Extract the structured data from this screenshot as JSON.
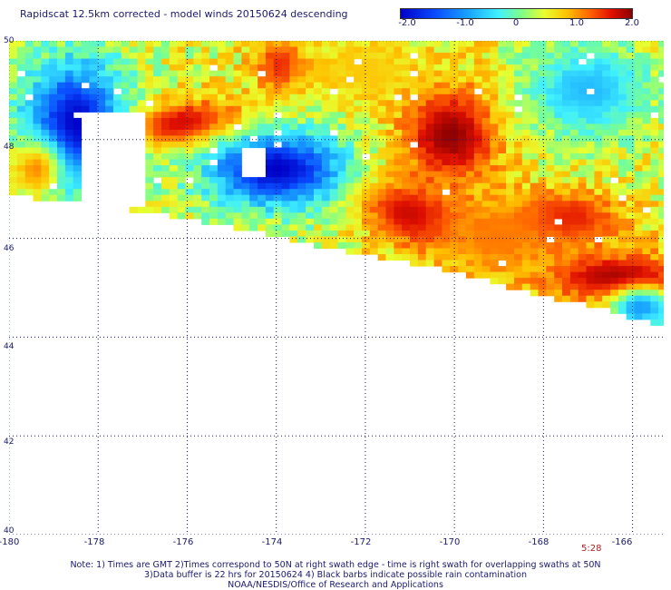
{
  "title": "Rapidscat 12.5km corrected - model winds 20150624 descending",
  "colorbar": {
    "ticks": [
      "-2.0",
      "-1.0",
      "0",
      "1.0",
      "2.0"
    ],
    "range": [
      -2.0,
      2.0
    ],
    "colors": [
      "#0000c8",
      "#0a4cff",
      "#1aa8ff",
      "#3ff0ff",
      "#7dff8a",
      "#e8ff30",
      "#ffc000",
      "#ff6000",
      "#e01000",
      "#8b0000"
    ]
  },
  "axes": {
    "x_ticks": [
      "-180",
      "-178",
      "-176",
      "-174",
      "-172",
      "-170",
      "-168",
      "-166"
    ],
    "y_ticks": [
      "50",
      "48",
      "46",
      "44",
      "42",
      "40"
    ],
    "lon_range": [
      -180,
      -165.3
    ],
    "lat_range": [
      40,
      50
    ],
    "grid": "dotted",
    "grid_color": "#2b9e2b"
  },
  "time_label": "5:28",
  "notes": [
    "Note: 1) Times are GMT 2)Times correspond to 50N at right swath edge - time is right swath for overlapping swaths at 50N",
    "3)Data buffer is 22 hrs for 20150624 4) Black barbs indicate possible rain contamination",
    "NOAA/NESDIS/Office of Research and Applications"
  ],
  "chart_data": {
    "type": "heatmap",
    "title": "Rapidscat 12.5km corrected - model winds 20150624 descending",
    "xlabel": "",
    "ylabel": "",
    "xlim": [
      -180,
      -165.3
    ],
    "ylim": [
      40,
      50
    ],
    "value_range": [
      -2.0,
      2.0
    ],
    "swath_south_edge": [
      [
        -180,
        46.9
      ],
      [
        -178.4,
        46.8
      ],
      [
        -177.0,
        46.6
      ],
      [
        -175.0,
        46.3
      ],
      [
        -172.5,
        45.8
      ],
      [
        -170.0,
        45.4
      ],
      [
        -168.5,
        45.0
      ],
      [
        -167.0,
        44.7
      ],
      [
        -165.3,
        44.3
      ]
    ],
    "no_data_regions": [
      {
        "lon": [
          -178.4,
          -177.0
        ],
        "lat": [
          46.7,
          48.6
        ]
      },
      {
        "lon": [
          -174.7,
          -174.2
        ],
        "lat": [
          47.3,
          47.9
        ]
      }
    ],
    "features": [
      {
        "lon": -176.2,
        "lat": 48.3,
        "value": 2.0,
        "spread_lon": 1.1,
        "spread_lat": 0.35,
        "tilt": -0.55
      },
      {
        "lon": -170.1,
        "lat": 48.1,
        "value": 2.0,
        "spread_lon": 0.8,
        "spread_lat": 0.7,
        "tilt": 0
      },
      {
        "lon": -171.0,
        "lat": 46.5,
        "value": 1.8,
        "spread_lon": 0.8,
        "spread_lat": 0.5,
        "tilt": 0.4
      },
      {
        "lon": -166.3,
        "lat": 45.2,
        "value": 2.0,
        "spread_lon": 1.2,
        "spread_lat": 0.35,
        "tilt": 0
      },
      {
        "lon": -167.5,
        "lat": 46.4,
        "value": 1.6,
        "spread_lon": 0.9,
        "spread_lat": 0.4,
        "tilt": 0
      },
      {
        "lon": -173.9,
        "lat": 49.5,
        "value": 1.5,
        "spread_lon": 0.4,
        "spread_lat": 0.4,
        "tilt": 0
      },
      {
        "lon": -178.5,
        "lat": 48.3,
        "value": -2.0,
        "spread_lon": 0.9,
        "spread_lat": 1.0,
        "tilt": 0
      },
      {
        "lon": -174.0,
        "lat": 47.4,
        "value": -2.0,
        "spread_lon": 1.2,
        "spread_lat": 0.6,
        "tilt": 0
      },
      {
        "lon": -179.4,
        "lat": 47.4,
        "value": 0.9,
        "spread_lon": 0.4,
        "spread_lat": 0.4,
        "tilt": 0
      },
      {
        "lon": -167.0,
        "lat": 49.0,
        "value": -1.0,
        "spread_lon": 1.0,
        "spread_lat": 0.7,
        "tilt": 0
      },
      {
        "lon": -165.8,
        "lat": 44.6,
        "value": -1.2,
        "spread_lon": 0.5,
        "spread_lat": 0.3,
        "tilt": 0
      },
      {
        "lon": -172.0,
        "lat": 49.4,
        "value": 0.6,
        "spread_lon": 0.9,
        "spread_lat": 0.5,
        "tilt": 0
      },
      {
        "lon": -169.0,
        "lat": 46.0,
        "value": 1.0,
        "spread_lon": 1.0,
        "spread_lat": 0.6,
        "tilt": 0
      }
    ]
  }
}
